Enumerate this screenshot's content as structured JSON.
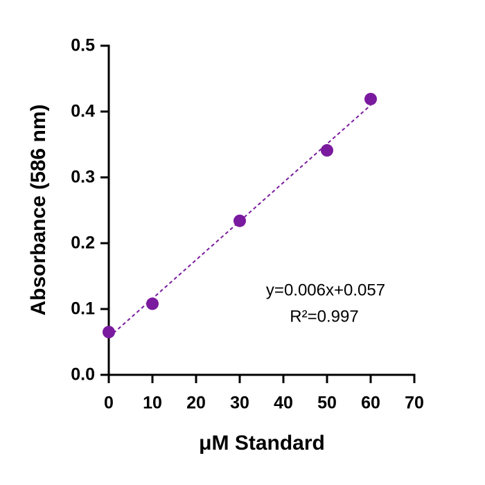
{
  "chart_data": {
    "type": "scatter",
    "x_label": "μM Standard",
    "y_label": "Absorbance (586 nm)",
    "x": [
      0,
      10,
      30,
      50,
      60
    ],
    "values": [
      0.065,
      0.108,
      0.234,
      0.341,
      0.419
    ],
    "color": "#7a1a9e",
    "trendline": "linear",
    "annotations": [
      "y=0.006x+0.057",
      "R²=0.997"
    ],
    "xlim": [
      0,
      70
    ],
    "xticks": [
      0,
      10,
      20,
      30,
      40,
      50,
      60,
      70
    ],
    "ylim": [
      0,
      0.5
    ],
    "yticks": [
      {
        "value": 0,
        "label": "0.0"
      },
      0.1,
      0.2,
      0.3,
      0.4,
      0.5
    ]
  }
}
